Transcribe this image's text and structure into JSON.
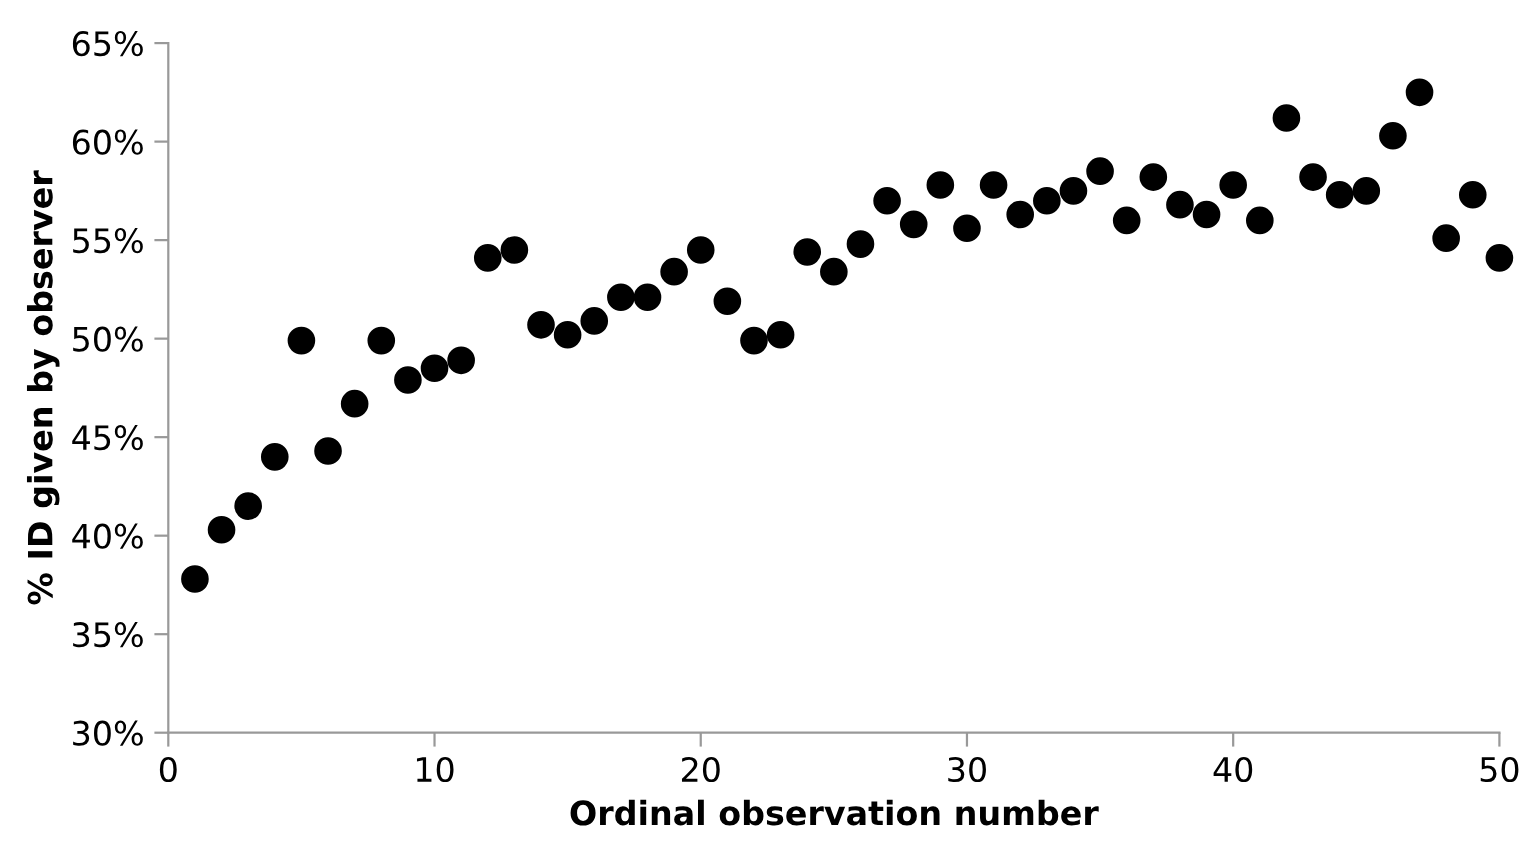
{
  "chart_data": {
    "type": "scatter",
    "xlabel": "Ordinal observation number",
    "ylabel": "% ID given by observer",
    "x": [
      1,
      2,
      3,
      4,
      5,
      6,
      7,
      8,
      9,
      10,
      11,
      12,
      13,
      14,
      15,
      16,
      17,
      18,
      19,
      20,
      21,
      22,
      23,
      24,
      25,
      26,
      27,
      28,
      29,
      30,
      31,
      32,
      33,
      34,
      35,
      36,
      37,
      38,
      39,
      40,
      41,
      42,
      43,
      44,
      45,
      46,
      47,
      48,
      49,
      50
    ],
    "series": [
      {
        "color": "#000000",
        "values": [
          37.8,
          40.3,
          41.5,
          44.0,
          49.9,
          44.3,
          46.7,
          49.9,
          47.9,
          48.5,
          48.9,
          54.1,
          54.5,
          50.7,
          50.2,
          50.9,
          52.1,
          52.1,
          53.4,
          54.5,
          51.9,
          49.9,
          50.2,
          54.4,
          53.4,
          54.8,
          57.0,
          55.8,
          57.8,
          55.6,
          57.8,
          56.3,
          57.0,
          57.5,
          58.5,
          56.0,
          58.2,
          56.8,
          56.3,
          57.8,
          56.0,
          61.2,
          58.2,
          57.3,
          57.5,
          60.3,
          62.5,
          55.1,
          57.3,
          54.1
        ]
      }
    ],
    "xlim": [
      0,
      50
    ],
    "xticks": [
      0,
      10,
      20,
      30,
      40,
      50
    ],
    "ylim": [
      30,
      65
    ],
    "yticks": [
      {
        "value": 30,
        "label": "30%"
      },
      {
        "value": 35,
        "label": "35%"
      },
      {
        "value": 40,
        "label": "40%"
      },
      {
        "value": 45,
        "label": "45%"
      },
      {
        "value": 50,
        "label": "50%"
      },
      {
        "value": 55,
        "label": "55%"
      },
      {
        "value": 60,
        "label": "60%"
      },
      {
        "value": 65,
        "label": "65%"
      }
    ],
    "marker": "circle",
    "grid": false
  }
}
